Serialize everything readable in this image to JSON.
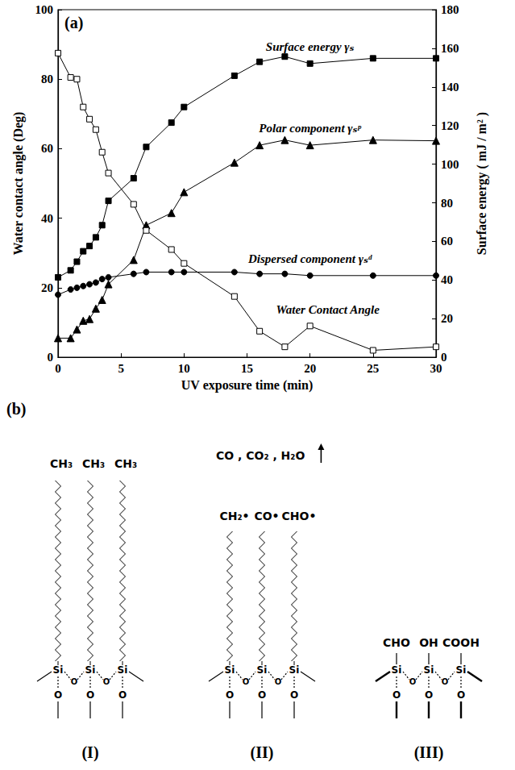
{
  "chart_data": {
    "type": "line",
    "panel_label": "(a)",
    "x_label": "UV exposure time (min)",
    "y_label": "Water contact angle (Deg)",
    "y2_label": "Surface energy ( mJ / m² )",
    "x": [
      0,
      1,
      1.5,
      2,
      2.5,
      3,
      3.5,
      4,
      6,
      7,
      9,
      10,
      14,
      16,
      18,
      20,
      25,
      30
    ],
    "xlim": [
      0,
      30
    ],
    "xticks": [
      0,
      5,
      10,
      15,
      20,
      25,
      30
    ],
    "ylim": [
      0,
      100
    ],
    "yticks": [
      0,
      20,
      40,
      60,
      80,
      100
    ],
    "y2lim": [
      0,
      180
    ],
    "y2ticks": [
      0,
      20,
      40,
      60,
      80,
      100,
      120,
      140,
      160,
      180
    ],
    "grid": false,
    "series": [
      {
        "name": "Surface energy γₛ",
        "axis": "y2",
        "color": "#000000",
        "marker": "square",
        "values": [
          41.4,
          45,
          49.5,
          54.9,
          57.6,
          62.1,
          68.4,
          81,
          92.7,
          108.9,
          121.5,
          129.6,
          145.8,
          153,
          155.7,
          152.1,
          154.8,
          154.8
        ]
      },
      {
        "name": "Polar component γₛᵖ",
        "axis": "y2",
        "color": "#000000",
        "marker": "triangle",
        "values": [
          9.9,
          9.9,
          14.4,
          18.9,
          19.8,
          25.2,
          29.7,
          37.8,
          50.4,
          68.4,
          74.7,
          85.5,
          100.8,
          109.8,
          112.5,
          109.8,
          112.5,
          112.1
        ]
      },
      {
        "name": "Dispersed component γₛᵈ",
        "axis": "y2",
        "color": "#000000",
        "marker": "circle",
        "values": [
          32.4,
          35.1,
          36,
          36.9,
          37.8,
          38.7,
          40.5,
          41.4,
          43.2,
          44.1,
          44.1,
          44.1,
          44.1,
          43.2,
          43.2,
          42.3,
          42.3,
          42.3
        ]
      },
      {
        "name": "Water Contact Angle",
        "axis": "y",
        "color": "#000000",
        "marker": "square_open",
        "values": [
          87.5,
          80.5,
          80,
          72,
          68.5,
          65.5,
          59,
          53,
          44,
          36.5,
          31,
          27,
          17.5,
          7.5,
          3,
          9,
          2,
          3
        ]
      }
    ]
  },
  "diagram": {
    "label": "(b)",
    "atom_si": "Si",
    "atom_o": "O",
    "structures": [
      {
        "label": "(I)",
        "groups": [
          "CH₃",
          "CH₃",
          "CH₃"
        ]
      },
      {
        "label": "(II)",
        "groups": [
          "CH₂•",
          "CO•",
          "CHO•"
        ],
        "released": "CO , CO₂ , H₂O"
      },
      {
        "label": "(III)",
        "groups": [
          "CHO",
          "OH",
          "COOH"
        ]
      }
    ]
  }
}
